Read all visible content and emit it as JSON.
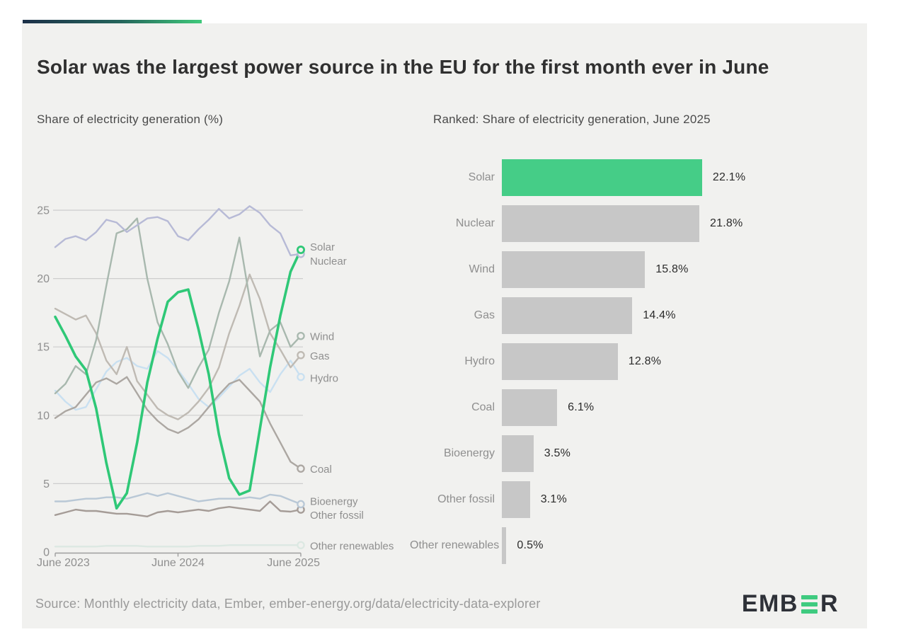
{
  "page": {
    "title": "Solar was the largest power source in the EU for the first month ever in June",
    "source": "Source: Monthly electricity data, Ember, ember-energy.org/data/electricity-data-explorer",
    "logo": {
      "prefix": "EMB",
      "suffix": "R",
      "name": "EMBER"
    }
  },
  "colors": {
    "accent_gradient": [
      "#1c3048",
      "#25665c",
      "#3fc97b"
    ],
    "panel_bg": "#f1f1ef",
    "title_text": "#303030",
    "subtitle_text": "#4a4a4a",
    "muted_text": "#8f8f8f",
    "value_text": "#2b2b2b",
    "gridline": "#cdcdcd",
    "axis": "#9e9e9e",
    "solar_green": "#2fc877",
    "bar_gray": "#c7c7c7",
    "logo_dark": "#2e3138",
    "logo_green": "#3fcb80"
  },
  "chart_data": [
    {
      "type": "line",
      "title": "Share of electricity generation (%)",
      "x_tick_labels": [
        "June 2023",
        "June 2024",
        "June 2025"
      ],
      "x_tick_months": [
        0,
        12,
        24
      ],
      "x_range_months": 24,
      "y_axis": {
        "min": 0,
        "max": 25,
        "ticks": [
          0,
          5,
          10,
          15,
          20,
          25
        ]
      },
      "grid": true,
      "legend_position": "right-of-line-ends",
      "series": [
        {
          "name": "Other renewables",
          "color": "#dce8e2",
          "values": [
            0.4,
            0.4,
            0.4,
            0.4,
            0.4,
            0.45,
            0.45,
            0.45,
            0.45,
            0.4,
            0.4,
            0.4,
            0.4,
            0.4,
            0.45,
            0.45,
            0.45,
            0.5,
            0.5,
            0.5,
            0.5,
            0.5,
            0.5,
            0.5,
            0.5
          ]
        },
        {
          "name": "Other fossil",
          "color": "#a59c97",
          "values": [
            2.7,
            2.9,
            3.1,
            3.0,
            3.0,
            2.9,
            2.8,
            2.8,
            2.7,
            2.6,
            2.9,
            3.0,
            2.9,
            3.0,
            3.1,
            3.0,
            3.2,
            3.3,
            3.2,
            3.1,
            3.0,
            3.7,
            3.0,
            2.95,
            3.1
          ]
        },
        {
          "name": "Bioenergy",
          "color": "#b9c8d6",
          "values": [
            3.7,
            3.7,
            3.8,
            3.9,
            3.9,
            4.0,
            4.0,
            3.9,
            4.1,
            4.3,
            4.1,
            4.3,
            4.1,
            3.9,
            3.7,
            3.8,
            3.9,
            3.9,
            3.9,
            4.0,
            3.9,
            4.2,
            4.1,
            3.8,
            3.5
          ]
        },
        {
          "name": "Hydro",
          "color": "#c9e0f1",
          "values": [
            11.8,
            11.0,
            10.4,
            10.6,
            11.9,
            13.2,
            13.9,
            14.2,
            13.6,
            13.4,
            14.7,
            14.2,
            13.3,
            12.3,
            11.2,
            10.6,
            11.3,
            12.1,
            12.9,
            13.4,
            12.4,
            11.7,
            13.0,
            14.0,
            12.8
          ]
        },
        {
          "name": "Coal",
          "color": "#aca7a2",
          "values": [
            9.8,
            10.3,
            10.6,
            11.5,
            12.4,
            12.7,
            12.3,
            12.8,
            11.6,
            10.4,
            9.6,
            9.0,
            8.7,
            9.1,
            9.7,
            10.6,
            11.5,
            12.3,
            12.6,
            11.8,
            11.0,
            9.4,
            8.0,
            6.6,
            6.1
          ]
        },
        {
          "name": "Gas",
          "color": "#bfbab3",
          "values": [
            17.8,
            17.4,
            17.0,
            17.3,
            16.0,
            14.0,
            13.0,
            15.0,
            12.5,
            11.5,
            10.5,
            10.0,
            9.7,
            10.2,
            11.0,
            12.0,
            13.5,
            16.0,
            18.0,
            20.3,
            18.5,
            16.0,
            14.8,
            13.5,
            14.4
          ]
        },
        {
          "name": "Wind",
          "color": "#a8b8ae",
          "values": [
            11.6,
            12.3,
            13.6,
            13.0,
            15.5,
            19.5,
            23.3,
            23.6,
            24.4,
            20.0,
            16.8,
            15.2,
            13.2,
            12.0,
            13.5,
            14.8,
            17.5,
            19.8,
            23.0,
            18.5,
            14.3,
            16.2,
            16.8,
            15.0,
            15.8
          ]
        },
        {
          "name": "Nuclear",
          "color": "#b7bad6",
          "values": [
            22.3,
            22.9,
            23.1,
            22.8,
            23.4,
            24.3,
            24.1,
            23.4,
            23.9,
            24.4,
            24.5,
            24.2,
            23.1,
            22.8,
            23.6,
            24.3,
            25.1,
            24.4,
            24.7,
            25.3,
            24.8,
            23.9,
            23.3,
            21.7,
            21.8
          ]
        },
        {
          "name": "Solar",
          "color": "#2fc877",
          "values": [
            17.2,
            15.8,
            14.3,
            13.3,
            10.5,
            6.5,
            3.2,
            4.3,
            8.0,
            12.4,
            15.6,
            18.3,
            19.0,
            19.2,
            16.3,
            13.0,
            8.6,
            5.4,
            4.2,
            4.5,
            9.0,
            13.5,
            17.3,
            20.5,
            22.1
          ]
        }
      ]
    },
    {
      "type": "bar",
      "title": "Ranked: Share of electricity generation, June 2025",
      "orientation": "horizontal",
      "categories": [
        "Solar",
        "Nuclear",
        "Wind",
        "Gas",
        "Hydro",
        "Coal",
        "Bioenergy",
        "Other fossil",
        "Other renewables"
      ],
      "values": [
        22.1,
        21.8,
        15.8,
        14.4,
        12.8,
        6.1,
        3.5,
        3.1,
        0.5
      ],
      "value_labels": [
        "22.1%",
        "21.8%",
        "15.8%",
        "14.4%",
        "12.8%",
        "6.1%",
        "3.5%",
        "3.1%",
        "0.5%"
      ],
      "highlight_index": 0,
      "highlight_color": "#45cd87",
      "bar_color": "#c7c7c7"
    }
  ]
}
